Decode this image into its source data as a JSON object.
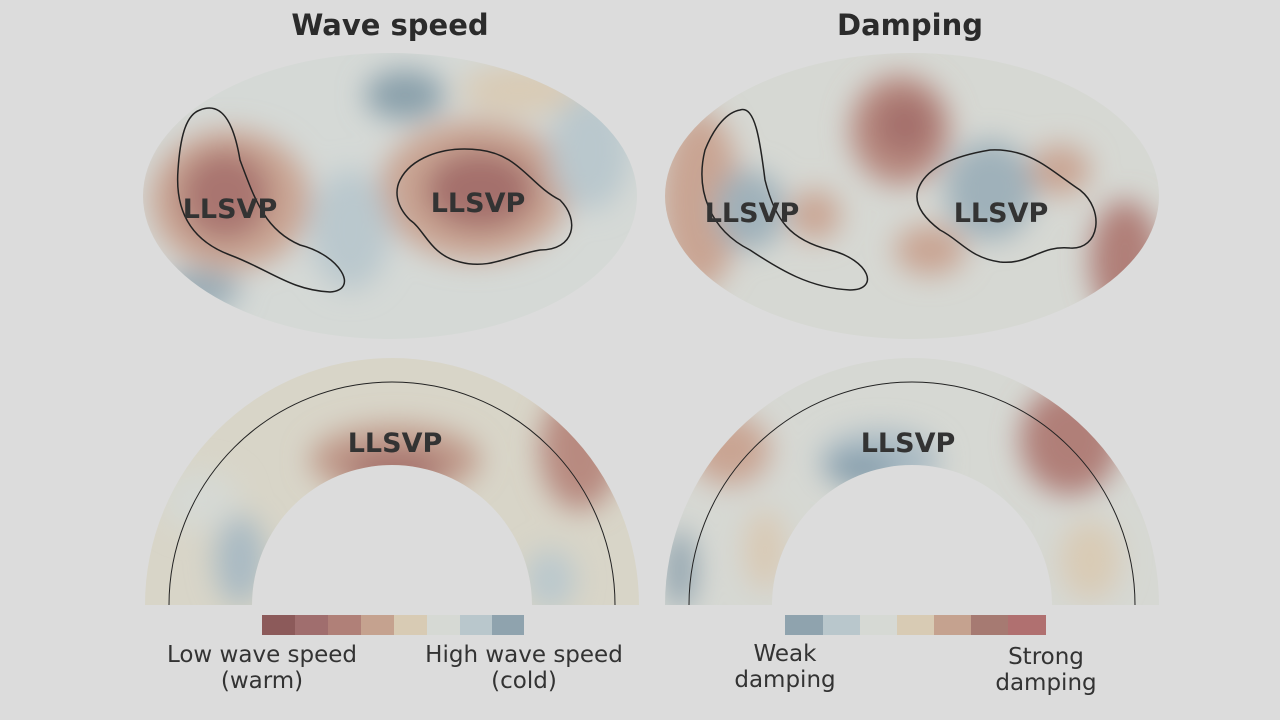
{
  "panels": [
    {
      "title": "Wave speed",
      "map_labels": [
        "LLSVP",
        "LLSVP"
      ],
      "section_label": "LLSVP",
      "legend_low": [
        "Low wave speed",
        "(warm)"
      ],
      "legend_high": [
        "High wave speed",
        "(cold)"
      ]
    },
    {
      "title": "Damping",
      "map_labels": [
        "LLSVP",
        "LLSVP"
      ],
      "section_label": "LLSVP",
      "legend_low": [
        "Weak",
        "damping"
      ],
      "legend_high": [
        "Strong",
        "damping"
      ]
    }
  ]
}
